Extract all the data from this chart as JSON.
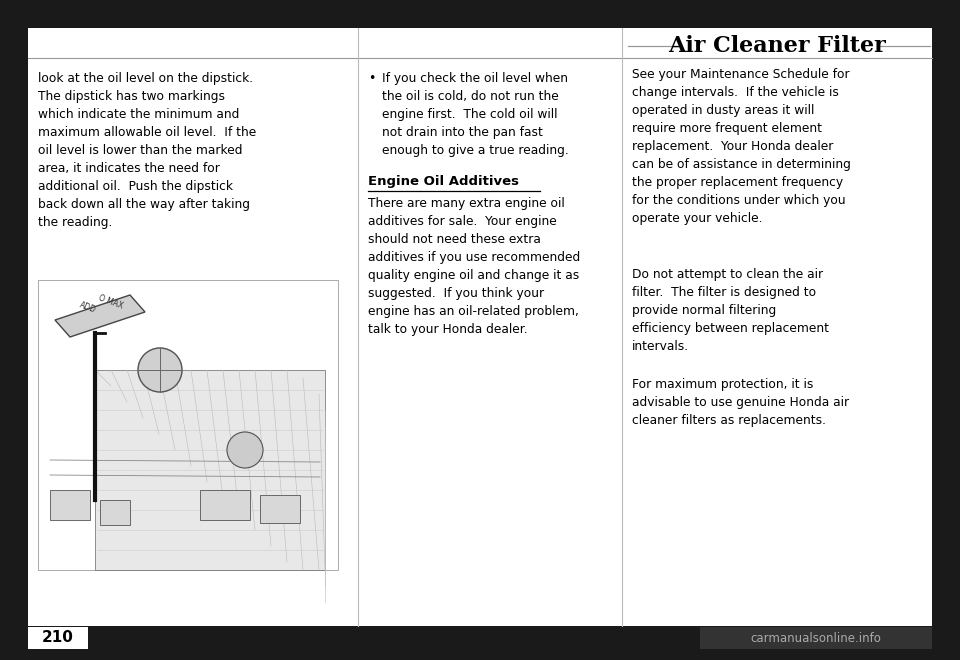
{
  "bg_outer": "#1a1a1a",
  "bg_page": "#ffffff",
  "text_color": "#000000",
  "page_number": "210",
  "watermark": "carmanualsonline.info",
  "section_title": "Air Cleaner Filter",
  "col1_text": "look at the oil level on the dipstick.\nThe dipstick has two markings\nwhich indicate the minimum and\nmaximum allowable oil level.  If the\noil level is lower than the marked\narea, it indicates the need for\nadditional oil.  Push the dipstick\nback down all the way after taking\nthe reading.",
  "col2_bullet": "If you check the oil level when\nthe oil is cold, do not run the\nengine first.  The cold oil will\nnot drain into the pan fast\nenough to give a true reading.",
  "col2_subtitle": "Engine Oil Additives",
  "col2_body": "There are many extra engine oil\nadditives for sale.  Your engine\nshould not need these extra\nadditives if you use recommended\nquality engine oil and change it as\nsuggested.  If you think your\nengine has an oil-related problem,\ntalk to your Honda dealer.",
  "col3_para1": "See your Maintenance Schedule for\nchange intervals.  If the vehicle is\noperated in dusty areas it will\nrequire more frequent element\nreplacement.  Your Honda dealer\ncan be of assistance in determining\nthe proper replacement frequency\nfor the conditions under which you\noperate your vehicle.",
  "col3_para2": "Do not attempt to clean the air\nfilter.  The filter is designed to\nprovide normal filtering\nefficiency between replacement\nintervals.",
  "col3_para3": "For maximum protection, it is\nadvisable to use genuine Honda air\ncleaner filters as replacements."
}
